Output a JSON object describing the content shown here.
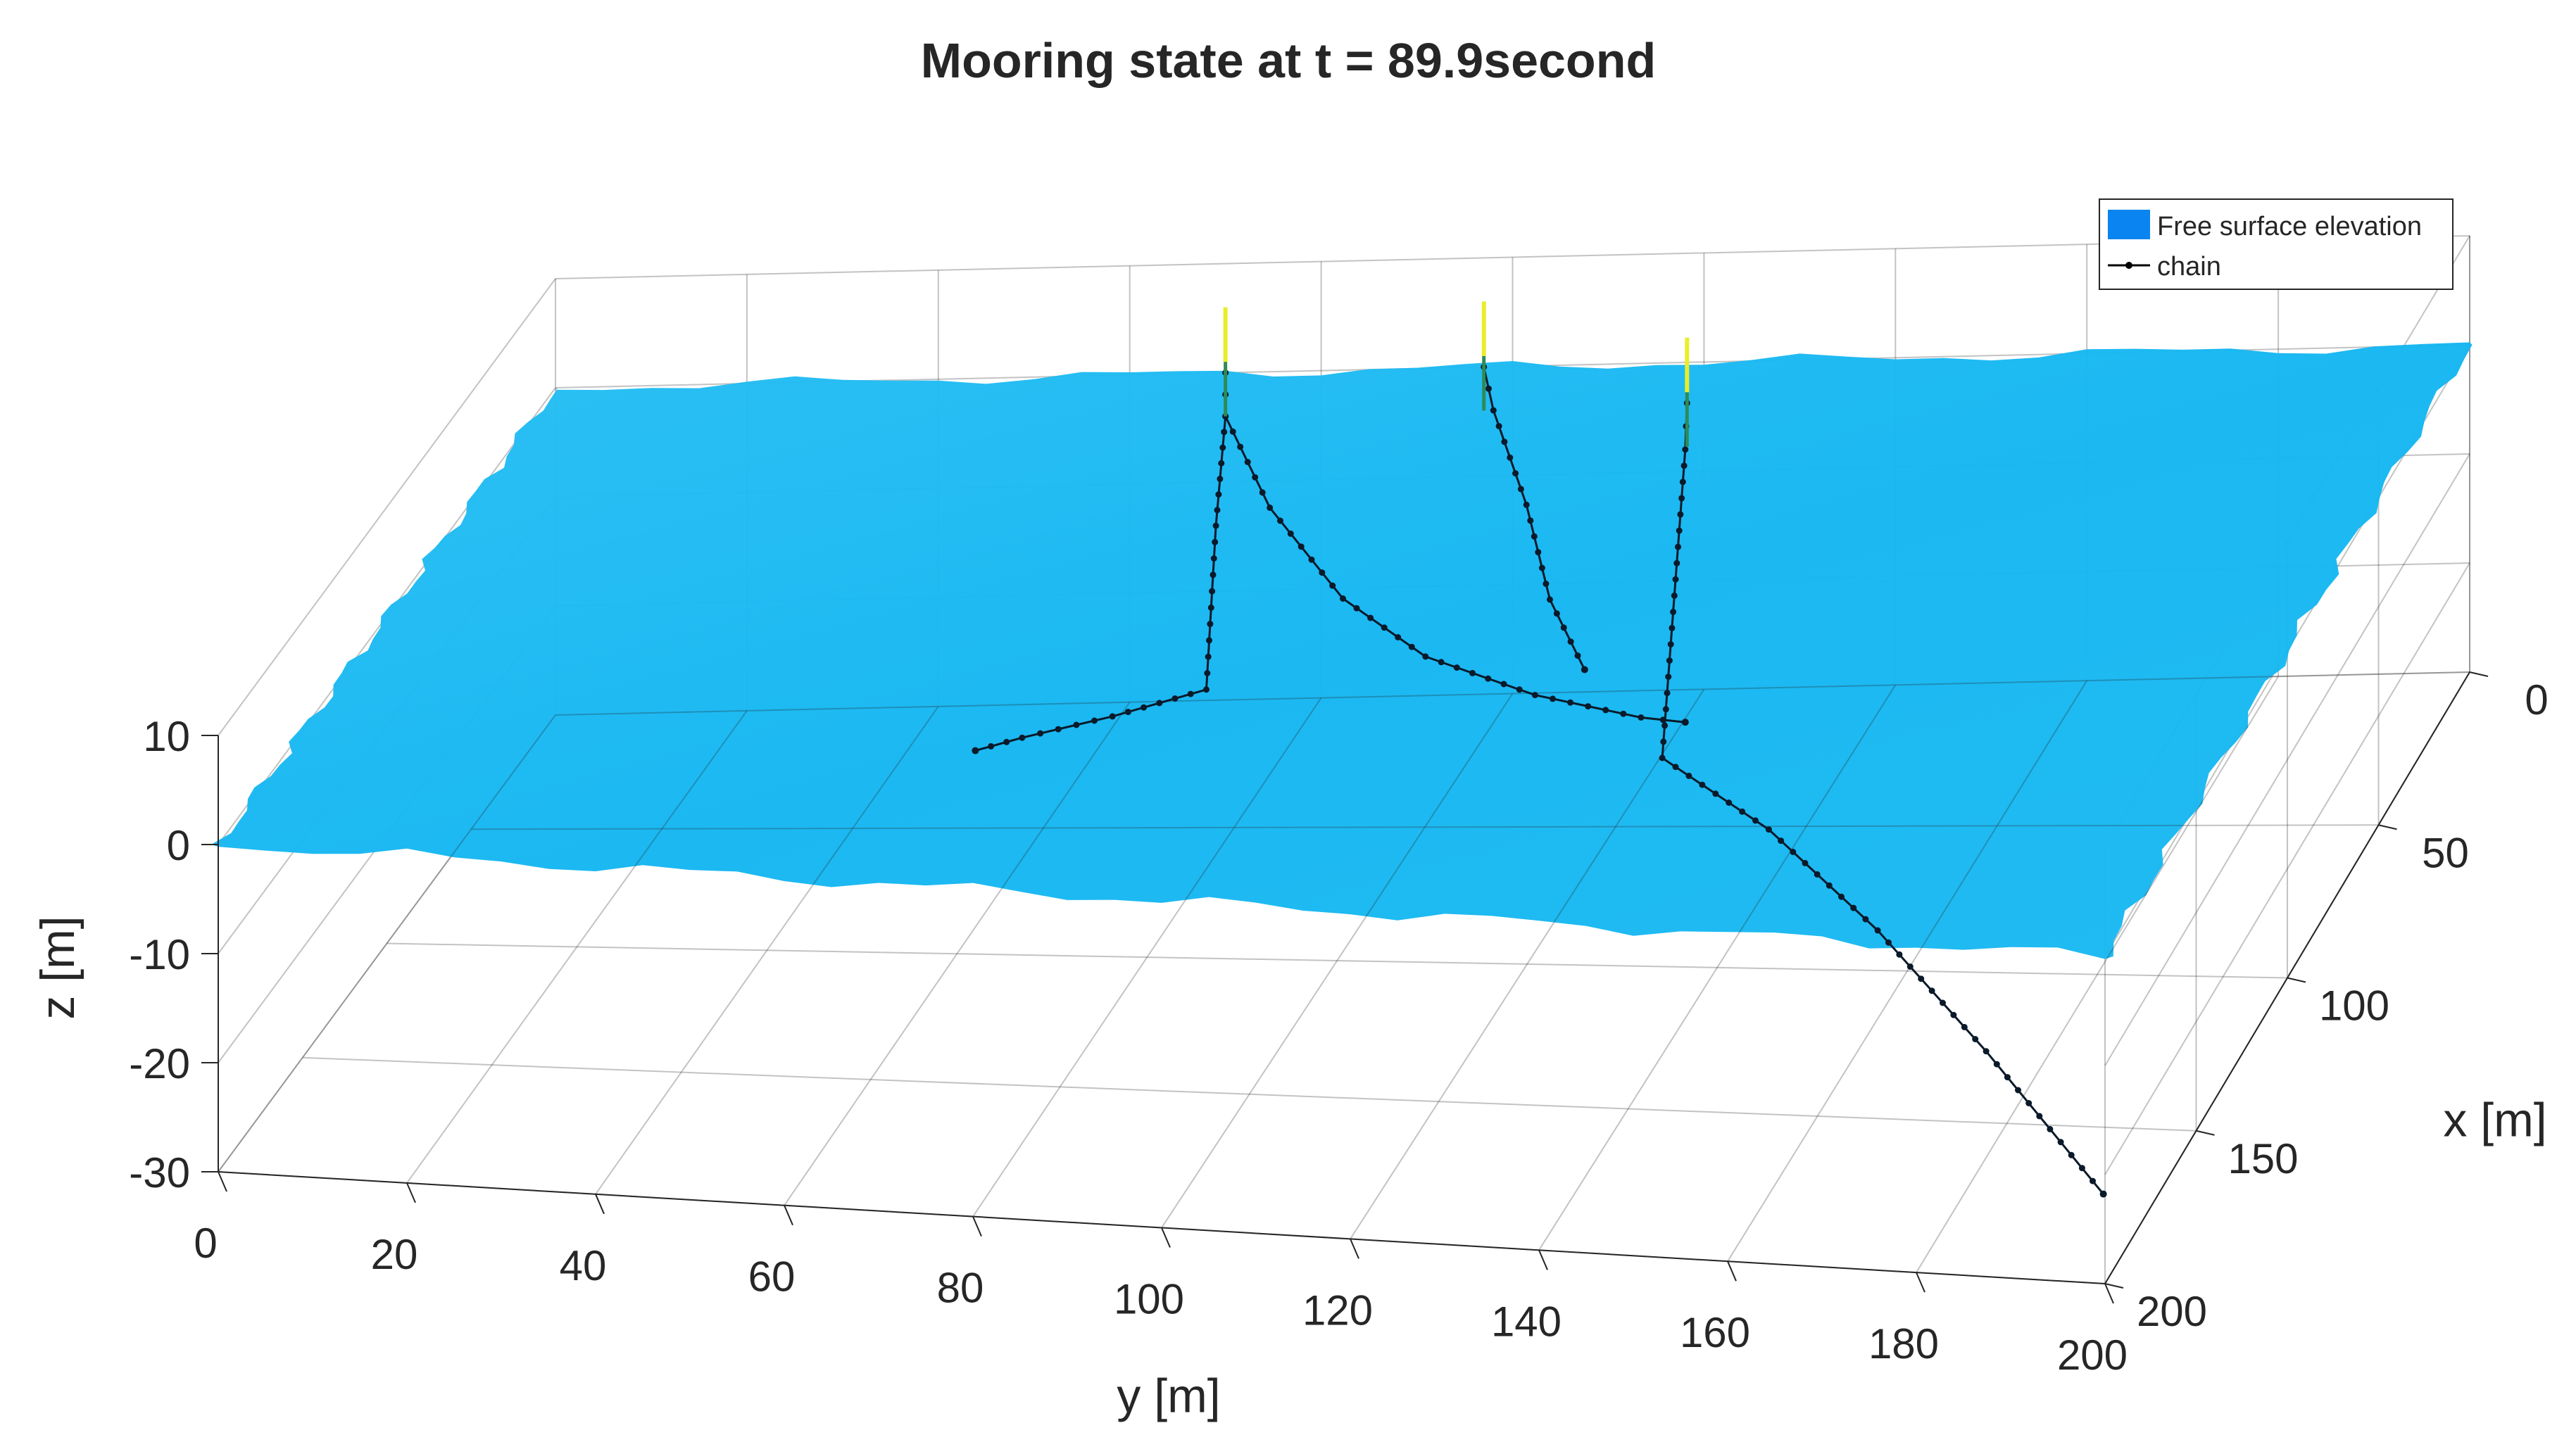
{
  "chart_data": {
    "type": "surface3d",
    "title": "Mooring state at t = 89.9second",
    "xlabel": "x [m]",
    "ylabel": "y [m]",
    "zlabel": "z [m]",
    "xlim": [
      0,
      200
    ],
    "ylim": [
      0,
      200
    ],
    "zlim": [
      -30,
      10
    ],
    "xticks": [
      0,
      50,
      100,
      150,
      200
    ],
    "yticks": [
      0,
      20,
      40,
      60,
      80,
      100,
      120,
      140,
      160,
      180,
      200
    ],
    "zticks": [
      10,
      0,
      -10,
      -20,
      -30
    ],
    "x_tick_labels": [
      "0",
      "50",
      "100",
      "150",
      "200"
    ],
    "y_tick_labels": [
      "0",
      "20",
      "40",
      "60",
      "80",
      "100",
      "120",
      "140",
      "160",
      "180",
      "200"
    ],
    "z_tick_labels": [
      "10",
      "0",
      "-10",
      "-20",
      "-30"
    ],
    "grid": true,
    "legend": {
      "position": "top-right",
      "entries": [
        {
          "name": "Free surface elevation",
          "color": "#0a84f0",
          "marker": "patch"
        },
        {
          "name": "chain",
          "color": "#000000",
          "marker": "line-dot"
        }
      ]
    },
    "surface": {
      "name": "Free surface elevation",
      "color": "#16b9f2",
      "x_extent": [
        0,
        200
      ],
      "y_extent": [
        0,
        200
      ],
      "mean_z": 0
    },
    "fairleads": [
      {
        "x": 0,
        "y": 70,
        "z": 0
      },
      {
        "x": 0,
        "y": 97,
        "z": 0
      },
      {
        "x": 15,
        "y": 121,
        "z": 0
      }
    ],
    "series": [
      {
        "name": "chain",
        "points": [
          [
            0,
            70,
            0
          ],
          [
            0,
            70,
            -4
          ],
          [
            0,
            69,
            -14
          ],
          [
            0,
            68,
            -29
          ],
          [
            10,
            60,
            -29
          ],
          [
            18,
            52,
            -29
          ],
          [
            23,
            48,
            -29
          ]
        ]
      },
      {
        "name": "chain",
        "points": [
          [
            0,
            70,
            -4
          ],
          [
            2,
            75,
            -12
          ],
          [
            4,
            83,
            -20
          ],
          [
            6,
            92,
            -25
          ],
          [
            9,
            104,
            -28
          ],
          [
            14,
            116,
            -29
          ],
          [
            16,
            121,
            -29
          ]
        ]
      },
      {
        "name": "chain",
        "points": [
          [
            0,
            97,
            0
          ],
          [
            0,
            98,
            -4
          ],
          [
            3,
            102,
            -12
          ],
          [
            6,
            105,
            -20
          ],
          [
            8,
            109,
            -26
          ]
        ]
      },
      {
        "name": "chain",
        "points": [
          [
            15,
            121,
            0
          ],
          [
            16,
            121,
            -4
          ],
          [
            29,
            121,
            -29
          ],
          [
            55,
            137,
            -29
          ],
          [
            90,
            155,
            -29
          ],
          [
            130,
            174,
            -29
          ],
          [
            175,
            195,
            -29
          ]
        ]
      }
    ]
  }
}
